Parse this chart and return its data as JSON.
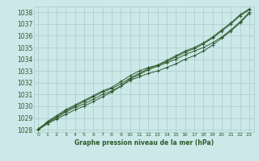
{
  "xlabel": "Graphe pression niveau de la mer (hPa)",
  "x_ticks": [
    0,
    1,
    2,
    3,
    4,
    5,
    6,
    7,
    8,
    9,
    10,
    11,
    12,
    13,
    14,
    15,
    16,
    17,
    18,
    19,
    20,
    21,
    22,
    23
  ],
  "ylim": [
    1027.8,
    1038.5
  ],
  "xlim": [
    -0.5,
    23.5
  ],
  "yticks": [
    1028,
    1029,
    1030,
    1031,
    1032,
    1033,
    1034,
    1035,
    1036,
    1037,
    1038
  ],
  "bg_color": "#cce8e8",
  "grid_color": "#aacccc",
  "line_color": "#2d5a2d",
  "line1": [
    1028.1,
    1028.6,
    1029.0,
    1029.5,
    1029.9,
    1030.2,
    1030.6,
    1031.0,
    1031.3,
    1031.7,
    1032.2,
    1032.5,
    1032.8,
    1033.0,
    1033.3,
    1033.6,
    1034.0,
    1034.3,
    1034.7,
    1035.2,
    1035.8,
    1036.4,
    1037.1,
    1037.9
  ],
  "line2": [
    1028.0,
    1028.5,
    1028.9,
    1029.3,
    1029.7,
    1030.0,
    1030.4,
    1030.8,
    1031.2,
    1031.7,
    1032.3,
    1032.7,
    1033.1,
    1033.4,
    1033.7,
    1034.0,
    1034.4,
    1034.7,
    1035.0,
    1035.4,
    1035.9,
    1036.5,
    1037.2,
    1038.0
  ],
  "line3": [
    1028.0,
    1028.7,
    1029.2,
    1029.7,
    1030.1,
    1030.5,
    1030.9,
    1031.3,
    1031.6,
    1032.1,
    1032.6,
    1033.0,
    1033.3,
    1033.5,
    1033.8,
    1034.2,
    1034.6,
    1034.9,
    1035.3,
    1035.8,
    1036.4,
    1037.0,
    1037.7,
    1038.2
  ],
  "line4": [
    1028.0,
    1028.6,
    1029.1,
    1029.6,
    1030.0,
    1030.4,
    1030.8,
    1031.2,
    1031.5,
    1031.9,
    1032.4,
    1032.8,
    1033.2,
    1033.5,
    1033.9,
    1034.3,
    1034.7,
    1035.0,
    1035.4,
    1035.9,
    1036.5,
    1037.1,
    1037.8,
    1038.3
  ]
}
